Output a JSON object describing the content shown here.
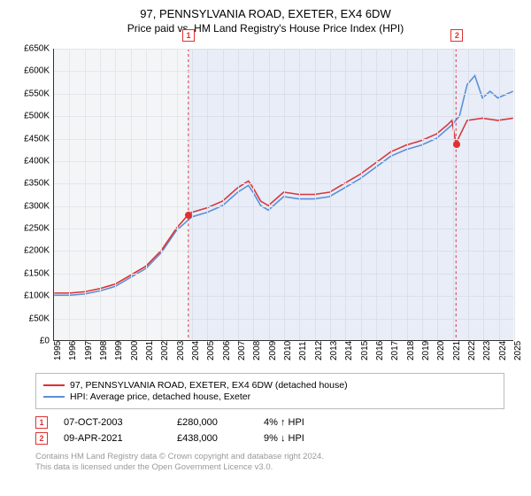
{
  "title": "97, PENNSYLVANIA ROAD, EXETER, EX4 6DW",
  "subtitle": "Price paid vs. HM Land Registry's House Price Index (HPI)",
  "chart": {
    "type": "line",
    "background_color": "#f4f5f7",
    "grid_color": "#e4e6ea",
    "xlim": [
      1995,
      2025
    ],
    "ylim": [
      0,
      650000
    ],
    "ytick_step": 50000,
    "yticks": [
      "£0",
      "£50K",
      "£100K",
      "£150K",
      "£200K",
      "£250K",
      "£300K",
      "£350K",
      "£400K",
      "£450K",
      "£500K",
      "£550K",
      "£600K",
      "£650K"
    ],
    "xticks": [
      1995,
      1996,
      1997,
      1998,
      1999,
      2000,
      2001,
      2002,
      2003,
      2004,
      2005,
      2006,
      2007,
      2008,
      2009,
      2010,
      2011,
      2012,
      2013,
      2014,
      2015,
      2016,
      2017,
      2018,
      2019,
      2020,
      2021,
      2022,
      2023,
      2024,
      2025
    ],
    "axis_fontsize": 10,
    "line_width": 1.6,
    "series": [
      {
        "name": "property",
        "label": "97, PENNSYLVANIA ROAD, EXETER, EX4 6DW (detached house)",
        "color": "#e03030",
        "data": [
          [
            1995,
            105000
          ],
          [
            1996,
            105000
          ],
          [
            1997,
            108000
          ],
          [
            1998,
            115000
          ],
          [
            1999,
            125000
          ],
          [
            2000,
            145000
          ],
          [
            2001,
            165000
          ],
          [
            2002,
            200000
          ],
          [
            2003,
            250000
          ],
          [
            2003.77,
            280000
          ],
          [
            2004,
            285000
          ],
          [
            2005,
            295000
          ],
          [
            2006,
            310000
          ],
          [
            2007,
            340000
          ],
          [
            2007.7,
            355000
          ],
          [
            2008,
            340000
          ],
          [
            2008.5,
            310000
          ],
          [
            2009,
            300000
          ],
          [
            2010,
            330000
          ],
          [
            2011,
            325000
          ],
          [
            2012,
            325000
          ],
          [
            2013,
            330000
          ],
          [
            2014,
            350000
          ],
          [
            2015,
            370000
          ],
          [
            2016,
            395000
          ],
          [
            2017,
            420000
          ],
          [
            2018,
            435000
          ],
          [
            2019,
            445000
          ],
          [
            2020,
            460000
          ],
          [
            2020.7,
            480000
          ],
          [
            2021,
            490000
          ],
          [
            2021.27,
            438000
          ],
          [
            2021.5,
            455000
          ],
          [
            2022,
            490000
          ],
          [
            2023,
            495000
          ],
          [
            2024,
            490000
          ],
          [
            2025,
            495000
          ]
        ]
      },
      {
        "name": "hpi",
        "label": "HPI: Average price, detached house, Exeter",
        "color": "#5b8fd6",
        "data": [
          [
            1995,
            100000
          ],
          [
            1996,
            100000
          ],
          [
            1997,
            103000
          ],
          [
            1998,
            110000
          ],
          [
            1999,
            120000
          ],
          [
            2000,
            140000
          ],
          [
            2001,
            160000
          ],
          [
            2002,
            195000
          ],
          [
            2003,
            245000
          ],
          [
            2004,
            275000
          ],
          [
            2005,
            285000
          ],
          [
            2006,
            300000
          ],
          [
            2007,
            330000
          ],
          [
            2007.7,
            345000
          ],
          [
            2008,
            330000
          ],
          [
            2008.5,
            300000
          ],
          [
            2009,
            290000
          ],
          [
            2010,
            320000
          ],
          [
            2011,
            315000
          ],
          [
            2012,
            315000
          ],
          [
            2013,
            320000
          ],
          [
            2014,
            340000
          ],
          [
            2015,
            360000
          ],
          [
            2016,
            385000
          ],
          [
            2017,
            410000
          ],
          [
            2018,
            425000
          ],
          [
            2019,
            435000
          ],
          [
            2020,
            450000
          ],
          [
            2021,
            480000
          ],
          [
            2021.5,
            500000
          ],
          [
            2022,
            570000
          ],
          [
            2022.5,
            590000
          ],
          [
            2023,
            540000
          ],
          [
            2023.5,
            555000
          ],
          [
            2024,
            540000
          ],
          [
            2025,
            555000
          ]
        ]
      }
    ],
    "shade_periods": [
      {
        "from": 2003.77,
        "to": 2021.27,
        "color": "rgba(100,150,255,0.08)"
      },
      {
        "from": 2021.27,
        "to": 2025,
        "color": "rgba(100,150,255,0.08)"
      }
    ],
    "sales": [
      {
        "n": "1",
        "year": 2003.77,
        "date": "07-OCT-2003",
        "price": "£280,000",
        "price_val": 280000,
        "delta": "4%",
        "arrow": "↑",
        "vs": "HPI"
      },
      {
        "n": "2",
        "year": 2021.27,
        "date": "09-APR-2021",
        "price": "£438,000",
        "price_val": 438000,
        "delta": "9%",
        "arrow": "↓",
        "vs": "HPI"
      }
    ]
  },
  "footnote_line1": "Contains HM Land Registry data © Crown copyright and database right 2024.",
  "footnote_line2": "This data is licensed under the Open Government Licence v3.0.",
  "legend_fontsize": 10.5,
  "title_fontsize": 13,
  "subtitle_fontsize": 12
}
